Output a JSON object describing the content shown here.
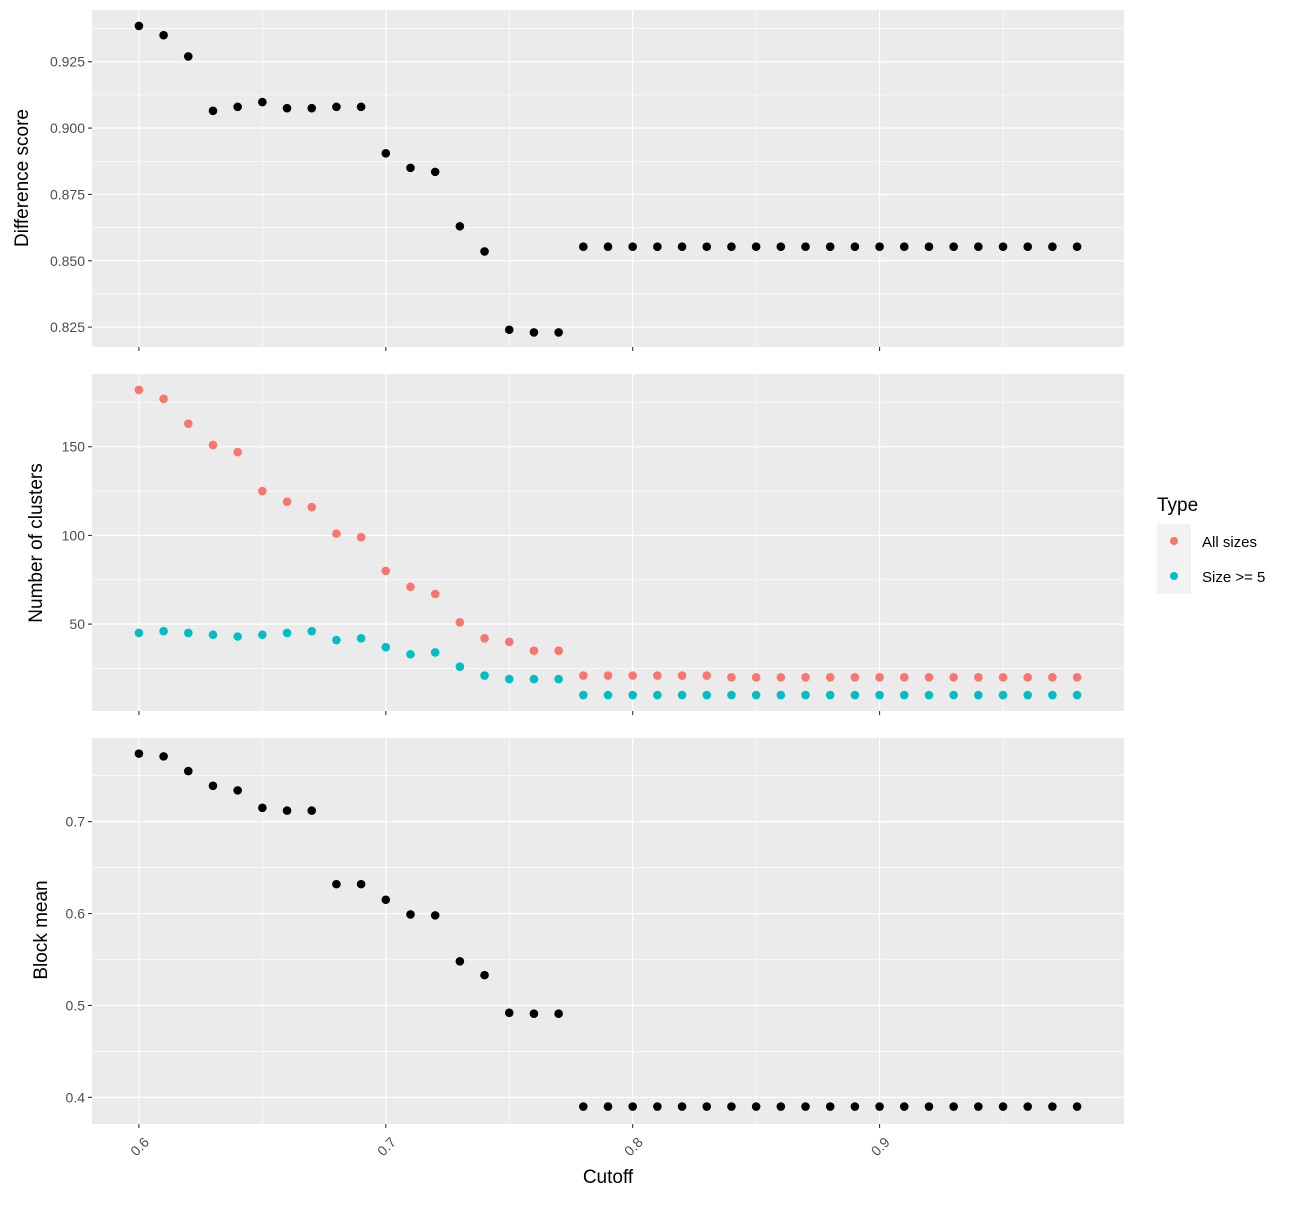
{
  "figure": {
    "xlabel": "Cutoff",
    "legend": {
      "title": "Type",
      "placement": "right",
      "entries": [
        {
          "label": "All sizes",
          "color": "#F8766D"
        },
        {
          "label": "Size >= 5",
          "color": "#00BFC4"
        }
      ]
    },
    "colors": {
      "panel_bg": "#EBEBEB",
      "grid": "#FFFFFF",
      "point": "#000000"
    }
  },
  "chart_data": [
    {
      "type": "scatter",
      "ylabel": "Difference score",
      "xlim": [
        0.581,
        0.999
      ],
      "ylim": [
        0.8175,
        0.9445
      ],
      "x_ticks": [
        0.6,
        0.7,
        0.8,
        0.9
      ],
      "x_tick_labels": [],
      "y_ticks": [
        0.825,
        0.85,
        0.875,
        0.9,
        0.925
      ],
      "y_tick_labels": [
        "0.825",
        "0.850",
        "0.875",
        "0.900",
        "0.925"
      ],
      "grid": true,
      "series": [
        {
          "color": "#000000",
          "x": [
            0.6,
            0.61,
            0.62,
            0.63,
            0.64,
            0.65,
            0.66,
            0.67,
            0.68,
            0.69,
            0.7,
            0.71,
            0.72,
            0.73,
            0.74,
            0.75,
            0.76,
            0.77,
            0.78,
            0.79,
            0.8,
            0.81,
            0.82,
            0.83,
            0.84,
            0.85,
            0.86,
            0.87,
            0.88,
            0.89,
            0.9,
            0.91,
            0.92,
            0.93,
            0.94,
            0.95,
            0.96,
            0.97,
            0.98
          ],
          "y": [
            0.9385,
            0.935,
            0.927,
            0.9065,
            0.908,
            0.9098,
            0.9075,
            0.9075,
            0.908,
            0.908,
            0.8905,
            0.885,
            0.8835,
            0.863,
            0.8535,
            0.824,
            0.823,
            0.823,
            0.8553,
            0.8553,
            0.8553,
            0.8553,
            0.8553,
            0.8553,
            0.8553,
            0.8553,
            0.8553,
            0.8553,
            0.8553,
            0.8553,
            0.8553,
            0.8553,
            0.8553,
            0.8553,
            0.8553,
            0.8553,
            0.8553,
            0.8553,
            0.8553
          ]
        }
      ]
    },
    {
      "type": "scatter",
      "ylabel": "Number of clusters",
      "xlim": [
        0.581,
        0.999
      ],
      "ylim": [
        1,
        191
      ],
      "x_ticks": [
        0.6,
        0.7,
        0.8,
        0.9
      ],
      "x_tick_labels": [],
      "y_ticks": [
        50,
        100,
        150
      ],
      "y_tick_labels": [
        "50",
        "100",
        "150"
      ],
      "grid": true,
      "series": [
        {
          "name": "All sizes",
          "color": "#F8766D",
          "x": [
            0.6,
            0.61,
            0.62,
            0.63,
            0.64,
            0.65,
            0.66,
            0.67,
            0.68,
            0.69,
            0.7,
            0.71,
            0.72,
            0.73,
            0.74,
            0.75,
            0.76,
            0.77,
            0.78,
            0.79,
            0.8,
            0.81,
            0.82,
            0.83,
            0.84,
            0.85,
            0.86,
            0.87,
            0.88,
            0.89,
            0.9,
            0.91,
            0.92,
            0.93,
            0.94,
            0.95,
            0.96,
            0.97,
            0.98
          ],
          "y": [
            182,
            177,
            163,
            151,
            147,
            125,
            119,
            116,
            101,
            99,
            80,
            71,
            67,
            51,
            42,
            40,
            35,
            35,
            21,
            21,
            21,
            21,
            21,
            21,
            20,
            20,
            20,
            20,
            20,
            20,
            20,
            20,
            20,
            20,
            20,
            20,
            20,
            20,
            20
          ]
        },
        {
          "name": "Size >= 5",
          "color": "#00BFC4",
          "x": [
            0.6,
            0.61,
            0.62,
            0.63,
            0.64,
            0.65,
            0.66,
            0.67,
            0.68,
            0.69,
            0.7,
            0.71,
            0.72,
            0.73,
            0.74,
            0.75,
            0.76,
            0.77,
            0.78,
            0.79,
            0.8,
            0.81,
            0.82,
            0.83,
            0.84,
            0.85,
            0.86,
            0.87,
            0.88,
            0.89,
            0.9,
            0.91,
            0.92,
            0.93,
            0.94,
            0.95,
            0.96,
            0.97,
            0.98
          ],
          "y": [
            45,
            46,
            45,
            44,
            43,
            44,
            45,
            46,
            41,
            42,
            37,
            33,
            34,
            26,
            21,
            19,
            19,
            19,
            10,
            10,
            10,
            10,
            10,
            10,
            10,
            10,
            10,
            10,
            10,
            10,
            10,
            10,
            10,
            10,
            10,
            10,
            10,
            10,
            10
          ]
        }
      ]
    },
    {
      "type": "scatter",
      "ylabel": "Block mean",
      "xlim": [
        0.581,
        0.999
      ],
      "ylim": [
        0.371,
        0.791
      ],
      "x_ticks": [
        0.6,
        0.7,
        0.8,
        0.9
      ],
      "x_tick_labels": [
        "0.6",
        "0.7",
        "0.8",
        "0.9"
      ],
      "y_ticks": [
        0.4,
        0.5,
        0.6,
        0.7
      ],
      "y_tick_labels": [
        "0.4",
        "0.5",
        "0.6",
        "0.7"
      ],
      "grid": true,
      "series": [
        {
          "color": "#000000",
          "x": [
            0.6,
            0.61,
            0.62,
            0.63,
            0.64,
            0.65,
            0.66,
            0.67,
            0.68,
            0.69,
            0.7,
            0.71,
            0.72,
            0.73,
            0.74,
            0.75,
            0.76,
            0.77,
            0.78,
            0.79,
            0.8,
            0.81,
            0.82,
            0.83,
            0.84,
            0.85,
            0.86,
            0.87,
            0.88,
            0.89,
            0.9,
            0.91,
            0.92,
            0.93,
            0.94,
            0.95,
            0.96,
            0.97,
            0.98
          ],
          "y": [
            0.774,
            0.771,
            0.755,
            0.739,
            0.734,
            0.715,
            0.712,
            0.712,
            0.632,
            0.632,
            0.615,
            0.599,
            0.598,
            0.548,
            0.533,
            0.492,
            0.491,
            0.491,
            0.39,
            0.39,
            0.39,
            0.39,
            0.39,
            0.39,
            0.39,
            0.39,
            0.39,
            0.39,
            0.39,
            0.39,
            0.39,
            0.39,
            0.39,
            0.39,
            0.39,
            0.39,
            0.39,
            0.39,
            0.39
          ]
        }
      ]
    }
  ]
}
